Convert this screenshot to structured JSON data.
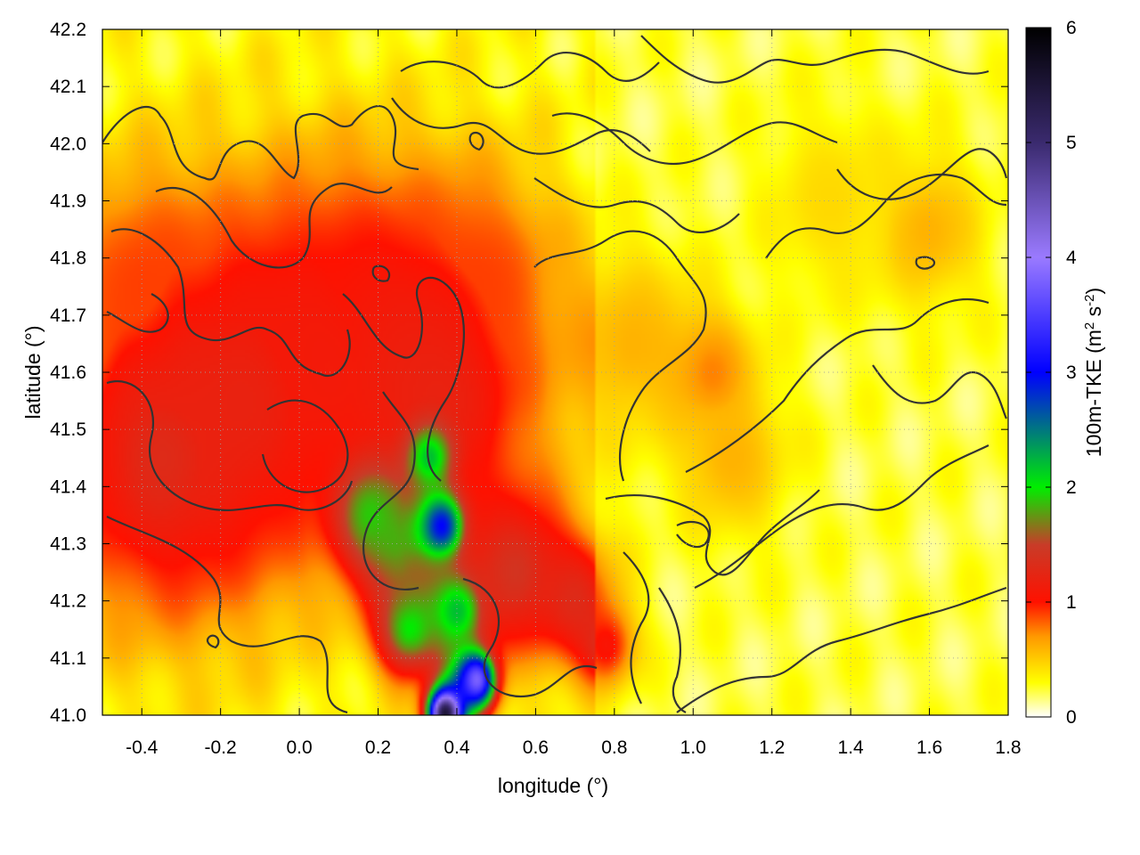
{
  "chart_data": {
    "type": "heatmap",
    "xlabel": "longitude (°)",
    "ylabel": "latitude (°)",
    "xlim": [
      -0.5,
      1.8
    ],
    "ylim": [
      41.0,
      42.2
    ],
    "x_ticks": [
      "-0.4",
      "-0.2",
      "0.0",
      "0.2",
      "0.4",
      "0.6",
      "0.8",
      "1.0",
      "1.2",
      "1.4",
      "1.6",
      "1.8"
    ],
    "x_tick_values": [
      -0.4,
      -0.2,
      0.0,
      0.2,
      0.4,
      0.6,
      0.8,
      1.0,
      1.2,
      1.4,
      1.6,
      1.8
    ],
    "y_ticks": [
      "41.0",
      "41.1",
      "41.2",
      "41.3",
      "41.4",
      "41.5",
      "41.6",
      "41.7",
      "41.8",
      "41.9",
      "42.0",
      "42.1",
      "42.2"
    ],
    "y_tick_values": [
      41.0,
      41.1,
      41.2,
      41.3,
      41.4,
      41.5,
      41.6,
      41.7,
      41.8,
      41.9,
      42.0,
      42.1,
      42.2
    ],
    "grid": true,
    "colorbar": {
      "label": "100m-TKE (m",
      "sup1": "2",
      "mid": " s",
      "sup2": "-2",
      "end": ")",
      "range": [
        0,
        6
      ],
      "ticks": [
        "0",
        "1",
        "2",
        "3",
        "4",
        "5",
        "6"
      ],
      "tick_values": [
        0,
        1,
        2,
        3,
        4,
        5,
        6
      ],
      "colormap": [
        {
          "v": 0.0,
          "color": "#ffffff"
        },
        {
          "v": 0.3,
          "color": "#ffff00"
        },
        {
          "v": 0.7,
          "color": "#ff9900"
        },
        {
          "v": 1.0,
          "color": "#ff1100"
        },
        {
          "v": 1.5,
          "color": "#c83c28"
        },
        {
          "v": 2.0,
          "color": "#00ee00"
        },
        {
          "v": 3.0,
          "color": "#0000ff"
        },
        {
          "v": 4.0,
          "color": "#9a7aff"
        },
        {
          "v": 5.0,
          "color": "#3a2a6e"
        },
        {
          "v": 6.0,
          "color": "#000000"
        }
      ]
    },
    "field_features": [
      {
        "lon": -0.35,
        "lat": 41.45,
        "tke": 1.3,
        "spread": 0.2
      },
      {
        "lon": -0.15,
        "lat": 41.55,
        "tke": 1.2,
        "spread": 0.22
      },
      {
        "lon": 0.0,
        "lat": 41.65,
        "tke": 1.1,
        "spread": 0.2
      },
      {
        "lon": 0.2,
        "lat": 41.7,
        "tke": 1.0,
        "spread": 0.18
      },
      {
        "lon": 0.35,
        "lat": 41.55,
        "tke": 1.2,
        "spread": 0.2
      },
      {
        "lon": -0.4,
        "lat": 41.75,
        "tke": 0.9,
        "spread": 0.15
      },
      {
        "lon": 0.45,
        "lat": 41.75,
        "tke": 0.9,
        "spread": 0.15
      },
      {
        "lon": 0.25,
        "lat": 41.3,
        "tke": 1.8,
        "spread": 0.08
      },
      {
        "lon": 0.18,
        "lat": 41.35,
        "tke": 1.9,
        "spread": 0.06
      },
      {
        "lon": 0.33,
        "lat": 41.45,
        "tke": 2.2,
        "spread": 0.04
      },
      {
        "lon": 0.36,
        "lat": 41.33,
        "tke": 3.0,
        "spread": 0.04
      },
      {
        "lon": 0.28,
        "lat": 41.15,
        "tke": 2.0,
        "spread": 0.06
      },
      {
        "lon": 0.4,
        "lat": 41.18,
        "tke": 2.2,
        "spread": 0.06
      },
      {
        "lon": 0.42,
        "lat": 41.05,
        "tke": 2.4,
        "spread": 0.05
      },
      {
        "lon": 0.37,
        "lat": 41.0,
        "tke": 5.5,
        "spread": 0.03
      },
      {
        "lon": 0.45,
        "lat": 41.06,
        "tke": 3.8,
        "spread": 0.03
      },
      {
        "lon": 0.55,
        "lat": 41.25,
        "tke": 1.4,
        "spread": 0.1
      },
      {
        "lon": 0.7,
        "lat": 41.2,
        "tke": 1.3,
        "spread": 0.08
      },
      {
        "lon": 0.78,
        "lat": 41.12,
        "tke": 1.4,
        "spread": 0.05
      },
      {
        "lon": 0.85,
        "lat": 41.65,
        "tke": 0.8,
        "spread": 0.12
      },
      {
        "lon": 1.05,
        "lat": 41.6,
        "tke": 1.0,
        "spread": 0.08
      },
      {
        "lon": 1.1,
        "lat": 41.45,
        "tke": 0.8,
        "spread": 0.1
      },
      {
        "lon": 1.6,
        "lat": 41.85,
        "tke": 0.8,
        "spread": 0.1
      },
      {
        "lon": 1.35,
        "lat": 41.9,
        "tke": 0.6,
        "spread": 0.12
      },
      {
        "lon": -0.3,
        "lat": 42.15,
        "tke": 0.2,
        "spread": 0.15
      },
      {
        "lon": 0.6,
        "lat": 42.05,
        "tke": 0.1,
        "spread": 0.2
      }
    ]
  }
}
